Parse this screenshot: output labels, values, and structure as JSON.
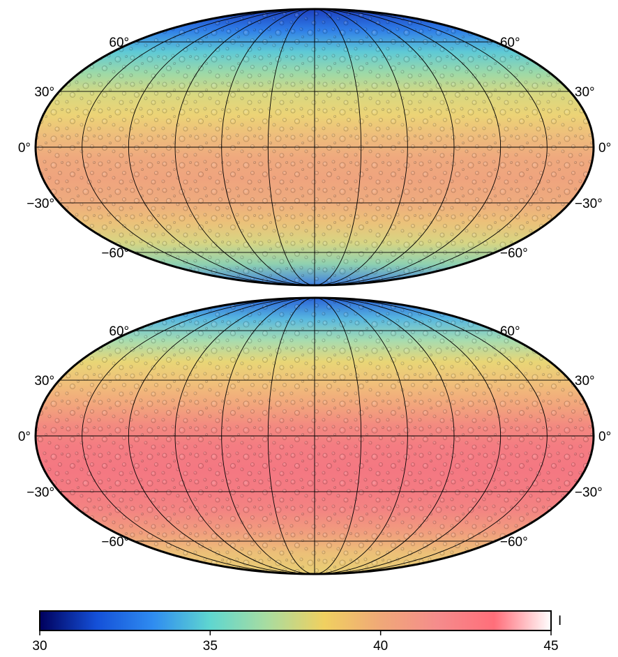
{
  "maps": [
    {
      "id": "map-top",
      "band_colors": [
        "#1c3fbf",
        "#2f7ee8",
        "#5ec9d6",
        "#9cd9a8",
        "#d8d880",
        "#ecd376",
        "#eebc7c",
        "#efa97e",
        "#efa47e",
        "#eeaa7e",
        "#ecc079",
        "#d7d583",
        "#8fd1b0",
        "#3f7fe0"
      ],
      "lat_labels_left": [
        "60°",
        "30°",
        "0°",
        "−30°",
        "−60°"
      ],
      "lat_labels_right": [
        "60°",
        "30°",
        "0°",
        "−30°",
        "−60°"
      ]
    },
    {
      "id": "map-bottom",
      "band_colors": [
        "#2a63d8",
        "#58b8e0",
        "#a6dcb0",
        "#e8d676",
        "#f0c07a",
        "#f2a67c",
        "#f38a80",
        "#f47c82",
        "#f47882",
        "#f47a82",
        "#f38482",
        "#f19c7e",
        "#ecbf78",
        "#e8cf74"
      ],
      "lat_labels_left": [
        "60°",
        "30°",
        "0°",
        "−30°",
        "−60°"
      ],
      "lat_labels_right": [
        "60°",
        "30°",
        "0°",
        "−30°",
        "−60°"
      ]
    }
  ],
  "colorbar": {
    "min": 30,
    "max": 45,
    "ticks": [
      "30",
      "35",
      "40",
      "45"
    ],
    "unit": "I",
    "stops": [
      "#00005c",
      "#1450d8",
      "#2f8cf0",
      "#5fd6d0",
      "#a8dca0",
      "#f0d060",
      "#f0a878",
      "#f58c8c",
      "#ff6e7a",
      "#ffffff"
    ]
  }
}
